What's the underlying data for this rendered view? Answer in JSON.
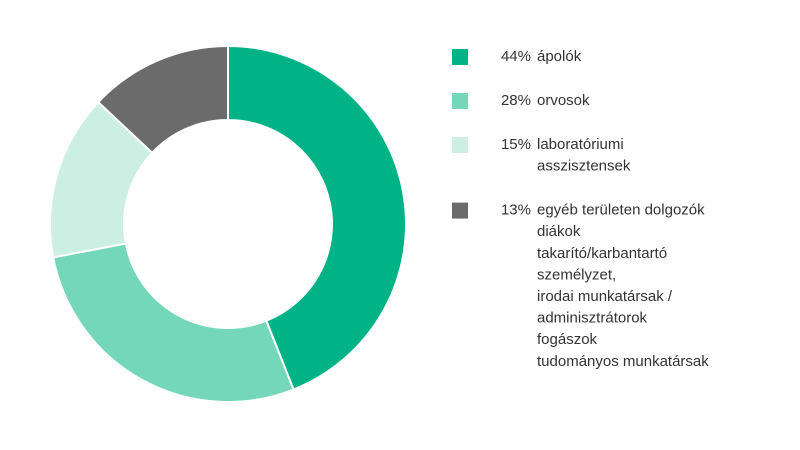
{
  "chart_data": {
    "type": "donut",
    "categories": [
      [
        "ápolók"
      ],
      [
        "orvosok"
      ],
      [
        "laboratóriumi",
        "asszisztensek"
      ],
      [
        "egyéb területen dolgozók",
        "diákok",
        "takarító/karbantartó",
        "személyzet,",
        "irodai munkatársak /",
        "adminisztrátorok",
        "fogászok",
        "tudományos munkatársak"
      ]
    ],
    "values": [
      44,
      28,
      15,
      13
    ],
    "value_labels": [
      "44%",
      "28%",
      "15%",
      "13%"
    ],
    "colors": [
      "#00b386",
      "#74d7b9",
      "#cdefe3",
      "#6b6b6b"
    ]
  }
}
